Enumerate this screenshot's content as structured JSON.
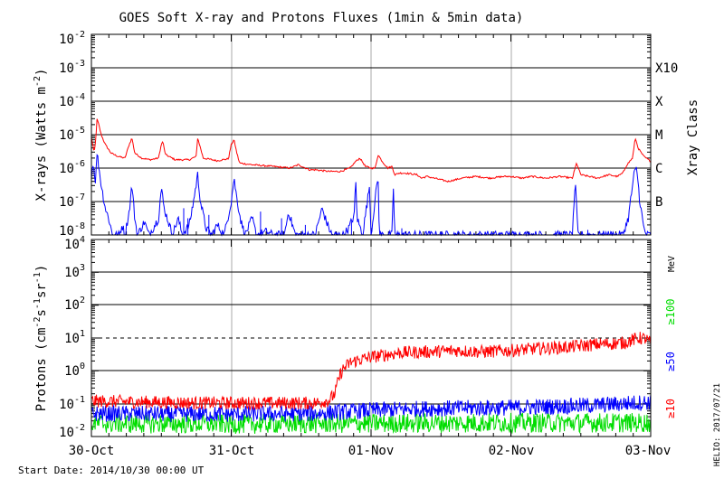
{
  "page": {
    "title": "GOES Soft X-ray and Protons Fluxes   (1min & 5min data)",
    "start_date": "Start Date: 2014/10/30 00:00 UT",
    "credit": "HELIO: 2017/07/21"
  },
  "colors": {
    "xray_long": "#ff0000",
    "xray_short": "#0000ff",
    "proton_10": "#ff0000",
    "proton_50": "#0000ff",
    "proton_100": "#00dd00",
    "grid": "#000000",
    "day_line": "#aaaaaa"
  },
  "chart_data": [
    {
      "type": "line",
      "panel": "xrays",
      "ylabel_main": "X-rays (Watts m",
      "ylabel_exp": "-2",
      "ylabel_end": ")",
      "yscale": "log",
      "ylim": [
        1e-08,
        0.01
      ],
      "yticks": [
        {
          "base": "10",
          "exp": "-2"
        },
        {
          "base": "10",
          "exp": "-3"
        },
        {
          "base": "10",
          "exp": "-4"
        },
        {
          "base": "10",
          "exp": "-5"
        },
        {
          "base": "10",
          "exp": "-6"
        },
        {
          "base": "10",
          "exp": "-7"
        },
        {
          "base": "10",
          "exp": "-8"
        }
      ],
      "right_axis_title": "Xray Class",
      "right_labels": [
        {
          "label": "X10",
          "flux_exp": -3
        },
        {
          "label": "X",
          "flux_exp": -4
        },
        {
          "label": "M",
          "flux_exp": -5
        },
        {
          "label": "C",
          "flux_exp": -6
        },
        {
          "label": "B",
          "flux_exp": -7
        }
      ],
      "xlim_days": [
        0,
        4
      ],
      "series": [
        {
          "key": "long",
          "points": [
            [
              0.0,
              -5.1
            ],
            [
              0.01,
              -5.3
            ],
            [
              0.02,
              -5.55
            ],
            [
              0.03,
              -5.2
            ],
            [
              0.04,
              -4.55
            ],
            [
              0.05,
              -4.65
            ],
            [
              0.07,
              -5.0
            ],
            [
              0.1,
              -5.3
            ],
            [
              0.14,
              -5.55
            ],
            [
              0.19,
              -5.65
            ],
            [
              0.24,
              -5.7
            ],
            [
              0.27,
              -5.3
            ],
            [
              0.29,
              -5.1
            ],
            [
              0.31,
              -5.55
            ],
            [
              0.36,
              -5.7
            ],
            [
              0.42,
              -5.75
            ],
            [
              0.48,
              -5.7
            ],
            [
              0.5,
              -5.3
            ],
            [
              0.51,
              -5.2
            ],
            [
              0.53,
              -5.6
            ],
            [
              0.6,
              -5.75
            ],
            [
              0.7,
              -5.75
            ],
            [
              0.75,
              -5.65
            ],
            [
              0.76,
              -5.1
            ],
            [
              0.78,
              -5.4
            ],
            [
              0.8,
              -5.7
            ],
            [
              0.9,
              -5.78
            ],
            [
              0.98,
              -5.72
            ],
            [
              1.0,
              -5.3
            ],
            [
              1.02,
              -5.15
            ],
            [
              1.04,
              -5.55
            ],
            [
              1.06,
              -5.85
            ],
            [
              1.15,
              -5.9
            ],
            [
              1.3,
              -5.95
            ],
            [
              1.42,
              -6.0
            ],
            [
              1.48,
              -5.9
            ],
            [
              1.56,
              -6.05
            ],
            [
              1.6,
              -6.05
            ],
            [
              1.7,
              -6.1
            ],
            [
              1.78,
              -6.1
            ],
            [
              1.85,
              -6.0
            ],
            [
              1.89,
              -5.8
            ],
            [
              1.92,
              -5.7
            ],
            [
              1.96,
              -5.95
            ],
            [
              2.0,
              -6.0
            ],
            [
              2.03,
              -6.0
            ],
            [
              2.05,
              -5.6
            ],
            [
              2.08,
              -5.8
            ],
            [
              2.12,
              -6.0
            ],
            [
              2.15,
              -5.95
            ],
            [
              2.17,
              -6.2
            ],
            [
              2.2,
              -6.15
            ],
            [
              2.25,
              -6.15
            ],
            [
              2.33,
              -6.2
            ],
            [
              2.36,
              -6.3
            ],
            [
              2.4,
              -6.25
            ],
            [
              2.45,
              -6.3
            ],
            [
              2.55,
              -6.4
            ],
            [
              2.65,
              -6.3
            ],
            [
              2.75,
              -6.25
            ],
            [
              2.85,
              -6.3
            ],
            [
              2.95,
              -6.25
            ],
            [
              3.0,
              -6.25
            ],
            [
              3.08,
              -6.3
            ],
            [
              3.15,
              -6.25
            ],
            [
              3.25,
              -6.3
            ],
            [
              3.35,
              -6.25
            ],
            [
              3.44,
              -6.3
            ],
            [
              3.47,
              -5.85
            ],
            [
              3.5,
              -6.2
            ],
            [
              3.56,
              -6.25
            ],
            [
              3.62,
              -6.3
            ],
            [
              3.7,
              -6.2
            ],
            [
              3.76,
              -6.25
            ],
            [
              3.8,
              -6.15
            ],
            [
              3.83,
              -5.9
            ],
            [
              3.87,
              -5.7
            ],
            [
              3.89,
              -5.1
            ],
            [
              3.91,
              -5.4
            ],
            [
              3.95,
              -5.65
            ],
            [
              4.0,
              -5.8
            ]
          ]
        },
        {
          "key": "short",
          "points": [
            [
              0.0,
              -6.3
            ],
            [
              0.01,
              -5.8
            ],
            [
              0.03,
              -6.4
            ],
            [
              0.04,
              -5.55
            ],
            [
              0.05,
              -5.85
            ],
            [
              0.07,
              -6.5
            ],
            [
              0.1,
              -7.2
            ],
            [
              0.13,
              -7.6
            ],
            [
              0.15,
              -8.0
            ],
            [
              0.2,
              -8.0
            ],
            [
              0.22,
              -7.7
            ],
            [
              0.24,
              -8.0
            ],
            [
              0.27,
              -7.3
            ],
            [
              0.29,
              -6.5
            ],
            [
              0.31,
              -7.5
            ],
            [
              0.33,
              -8.0
            ],
            [
              0.38,
              -7.6
            ],
            [
              0.41,
              -8.0
            ],
            [
              0.44,
              -7.8
            ],
            [
              0.48,
              -7.5
            ],
            [
              0.5,
              -6.6
            ],
            [
              0.52,
              -7.2
            ],
            [
              0.55,
              -7.6
            ],
            [
              0.58,
              -8.0
            ],
            [
              0.62,
              -7.5
            ],
            [
              0.65,
              -8.0
            ],
            [
              0.7,
              -7.7
            ],
            [
              0.73,
              -7.0
            ],
            [
              0.76,
              -6.2
            ],
            [
              0.78,
              -7.0
            ],
            [
              0.82,
              -7.8
            ],
            [
              0.86,
              -8.0
            ],
            [
              0.9,
              -7.7
            ],
            [
              0.95,
              -8.0
            ],
            [
              0.98,
              -7.4
            ],
            [
              1.0,
              -7.0
            ],
            [
              1.02,
              -6.3
            ],
            [
              1.04,
              -6.9
            ],
            [
              1.07,
              -7.6
            ],
            [
              1.1,
              -8.0
            ],
            [
              1.15,
              -7.5
            ],
            [
              1.18,
              -8.0
            ],
            [
              1.25,
              -7.9
            ],
            [
              1.3,
              -8.0
            ],
            [
              1.35,
              -8.0
            ],
            [
              1.38,
              -8.0
            ],
            [
              1.41,
              -7.3
            ],
            [
              1.43,
              -7.6
            ],
            [
              1.46,
              -8.0
            ],
            [
              1.55,
              -8.0
            ],
            [
              1.6,
              -8.0
            ],
            [
              1.65,
              -7.2
            ],
            [
              1.68,
              -7.6
            ],
            [
              1.72,
              -8.0
            ],
            [
              1.8,
              -8.0
            ],
            [
              1.84,
              -7.8
            ],
            [
              1.88,
              -7.4
            ],
            [
              1.89,
              -6.3
            ],
            [
              1.9,
              -7.5
            ],
            [
              1.94,
              -8.0
            ],
            [
              1.99,
              -6.5
            ],
            [
              2.0,
              -8.0
            ],
            [
              2.05,
              -6.2
            ],
            [
              2.06,
              -8.0
            ],
            [
              2.1,
              -8.0
            ],
            [
              2.15,
              -8.0
            ],
            [
              2.16,
              -6.6
            ],
            [
              2.17,
              -8.0
            ],
            [
              2.25,
              -8.0
            ],
            [
              2.35,
              -8.0
            ],
            [
              2.5,
              -8.0
            ],
            [
              2.7,
              -8.0
            ],
            [
              2.9,
              -8.0
            ],
            [
              3.1,
              -8.0
            ],
            [
              3.3,
              -8.0
            ],
            [
              3.44,
              -8.0
            ],
            [
              3.46,
              -6.4
            ],
            [
              3.48,
              -8.0
            ],
            [
              3.6,
              -8.0
            ],
            [
              3.8,
              -8.0
            ],
            [
              3.84,
              -7.5
            ],
            [
              3.88,
              -6.2
            ],
            [
              3.9,
              -6.0
            ],
            [
              3.92,
              -6.9
            ],
            [
              3.95,
              -7.8
            ],
            [
              3.97,
              -8.0
            ],
            [
              4.0,
              -8.0
            ]
          ]
        }
      ],
      "spikes_short": [
        [
          0.66,
          -7.2
        ],
        [
          0.69,
          -7.5
        ],
        [
          0.84,
          -7.4
        ],
        [
          1.21,
          -7.3
        ],
        [
          1.36,
          -7.5
        ],
        [
          1.53,
          -7.7
        ],
        [
          1.86,
          -7.6
        ],
        [
          2.22,
          -7.8
        ],
        [
          2.42,
          -7.9
        ],
        [
          3.02,
          -7.9
        ],
        [
          3.55,
          -7.85
        ],
        [
          3.72,
          -7.9
        ]
      ]
    },
    {
      "type": "line",
      "panel": "protons",
      "ylabel_main": "Protons (cm",
      "ylabel_exp1": "-2",
      "ylabel_mid1": "s",
      "ylabel_exp2": "-1",
      "ylabel_mid2": "sr",
      "ylabel_exp3": "-1",
      "ylabel_end": ")",
      "yscale": "log",
      "ylim": [
        0.01,
        10000
      ],
      "yticks": [
        {
          "base": "10",
          "exp": "4",
          "value_exp": 4
        },
        {
          "base": "10",
          "exp": "3",
          "value_exp": 3
        },
        {
          "base": "10",
          "exp": "2",
          "value_exp": 2
        },
        {
          "base": "10",
          "exp": "1",
          "value_exp": 1
        },
        {
          "base": "10",
          "exp": "0",
          "value_exp": 0
        },
        {
          "base": "10",
          "exp": "-1",
          "value_exp": -1
        },
        {
          "base": "10",
          "exp": "-2",
          "value_exp": -2
        }
      ],
      "dashed_level_exp": 1,
      "right_unit": "MeV",
      "legend": [
        {
          "label": "≥100",
          "color_key": "proton_100"
        },
        {
          "label": "≥50",
          "color_key": "proton_50"
        },
        {
          "label": "≥10",
          "color_key": "proton_10"
        }
      ],
      "xlim_days": [
        0,
        4
      ],
      "xticks": [
        {
          "label": "30-Oct",
          "day": 0
        },
        {
          "label": "31-Oct",
          "day": 1
        },
        {
          "label": "01-Nov",
          "day": 2
        },
        {
          "label": "02-Nov",
          "day": 3
        },
        {
          "label": "03-Nov",
          "day": 4
        }
      ],
      "series": [
        {
          "key": "p10",
          "label": "≥10",
          "noise": 0.2,
          "baseline": [
            [
              0.0,
              -0.92
            ],
            [
              0.4,
              -0.95
            ],
            [
              0.8,
              -0.98
            ],
            [
              1.2,
              -0.98
            ],
            [
              1.6,
              -0.98
            ],
            [
              1.7,
              -0.9
            ],
            [
              1.74,
              -0.7
            ],
            [
              1.76,
              -0.4
            ],
            [
              1.78,
              -0.1
            ],
            [
              1.8,
              0.05
            ],
            [
              1.85,
              0.25
            ],
            [
              1.9,
              0.32
            ],
            [
              2.0,
              0.42
            ],
            [
              2.2,
              0.55
            ],
            [
              2.4,
              0.58
            ],
            [
              2.6,
              0.62
            ],
            [
              2.8,
              0.58
            ],
            [
              3.0,
              0.62
            ],
            [
              3.2,
              0.68
            ],
            [
              3.4,
              0.72
            ],
            [
              3.6,
              0.8
            ],
            [
              3.8,
              0.85
            ],
            [
              3.92,
              1.0
            ],
            [
              3.96,
              0.98
            ],
            [
              4.0,
              0.85
            ]
          ]
        },
        {
          "key": "p50",
          "label": "≥50",
          "noise": 0.25,
          "baseline": [
            [
              0.0,
              -1.3
            ],
            [
              0.8,
              -1.32
            ],
            [
              1.6,
              -1.3
            ],
            [
              2.0,
              -1.2
            ],
            [
              2.4,
              -1.15
            ],
            [
              3.0,
              -1.12
            ],
            [
              3.6,
              -1.05
            ],
            [
              4.0,
              -0.95
            ]
          ]
        },
        {
          "key": "p100",
          "label": "≥100",
          "noise": 0.3,
          "baseline": [
            [
              0.0,
              -1.6
            ],
            [
              1.0,
              -1.62
            ],
            [
              2.0,
              -1.6
            ],
            [
              3.0,
              -1.58
            ],
            [
              4.0,
              -1.58
            ]
          ]
        }
      ]
    }
  ]
}
